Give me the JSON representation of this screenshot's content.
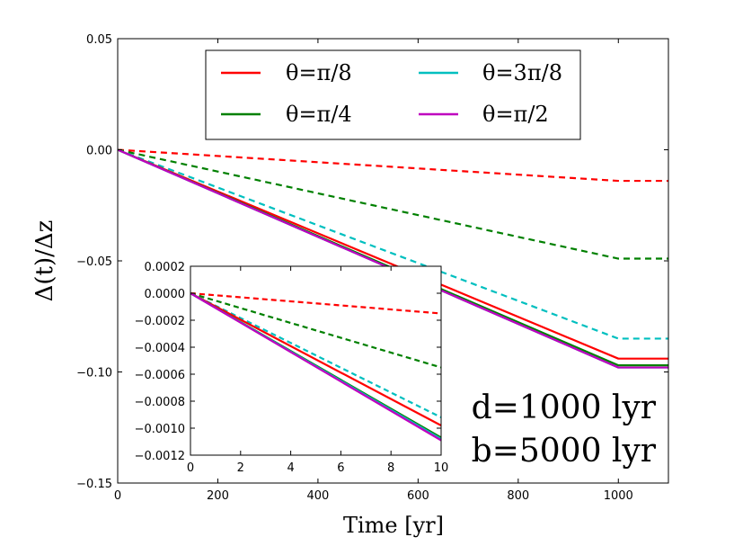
{
  "chart_data": [
    {
      "type": "line",
      "role": "main",
      "xlabel": "Time [yr]",
      "ylabel": "Δ(t)/Δz",
      "xlim": [
        0,
        1100
      ],
      "ylim": [
        -0.15,
        0.05
      ],
      "xticks": [
        0,
        200,
        400,
        600,
        800,
        1000
      ],
      "yticks": [
        0.05,
        0.0,
        -0.05,
        -0.1,
        -0.15
      ],
      "xtick_labels": [
        "0",
        "200",
        "400",
        "600",
        "800",
        "1000"
      ],
      "ytick_labels": [
        "0.05",
        "0.00",
        "−0.05",
        "−0.10",
        "−0.15"
      ],
      "grid": false,
      "legend_position": "top-center",
      "legend": [
        {
          "label": "θ=π/8",
          "color": "#ff0000"
        },
        {
          "label": "θ=3π/8",
          "color": "#00bfbf"
        },
        {
          "label": "θ=π/4",
          "color": "#008000"
        },
        {
          "label": "θ=π/2",
          "color": "#bf00bf"
        }
      ],
      "annotations": [
        "d=1000 lyr",
        "b=5000 lyr"
      ],
      "series": [
        {
          "name": "θ=π/8 solid",
          "color": "#ff0000",
          "dash": false,
          "x": [
            0,
            1000,
            1100
          ],
          "y": [
            0,
            -0.094,
            -0.094
          ]
        },
        {
          "name": "θ=π/4 solid",
          "color": "#008000",
          "dash": false,
          "x": [
            0,
            1000,
            1100
          ],
          "y": [
            0,
            -0.097,
            -0.097
          ]
        },
        {
          "name": "θ=3π/8 solid",
          "color": "#00bfbf",
          "dash": false,
          "x": [
            0,
            1000,
            1100
          ],
          "y": [
            0,
            -0.098,
            -0.098
          ]
        },
        {
          "name": "θ=π/2 solid",
          "color": "#bf00bf",
          "dash": false,
          "x": [
            0,
            1000,
            1100
          ],
          "y": [
            0,
            -0.098,
            -0.098
          ]
        },
        {
          "name": "θ=π/8 dashed",
          "color": "#ff0000",
          "dash": true,
          "x": [
            0,
            1000,
            1100
          ],
          "y": [
            0,
            -0.014,
            -0.014
          ]
        },
        {
          "name": "θ=π/4 dashed",
          "color": "#008000",
          "dash": true,
          "x": [
            0,
            1000,
            1100
          ],
          "y": [
            0,
            -0.049,
            -0.049
          ]
        },
        {
          "name": "θ=3π/8 dashed",
          "color": "#00bfbf",
          "dash": true,
          "x": [
            0,
            1000,
            1100
          ],
          "y": [
            0,
            -0.085,
            -0.085
          ]
        }
      ]
    },
    {
      "type": "line",
      "role": "inset",
      "xlim": [
        0,
        10
      ],
      "ylim": [
        -0.0012,
        0.0002
      ],
      "xticks": [
        0,
        2,
        4,
        6,
        8,
        10
      ],
      "yticks": [
        0.0002,
        0.0,
        -0.0002,
        -0.0004,
        -0.0006,
        -0.0008,
        -0.001,
        -0.0012
      ],
      "xtick_labels": [
        "0",
        "2",
        "4",
        "6",
        "8",
        "10"
      ],
      "ytick_labels": [
        "0.0002",
        "0.0000",
        "−0.0002",
        "−0.0004",
        "−0.0006",
        "−0.0008",
        "−0.0010",
        "−0.0012"
      ],
      "series": [
        {
          "name": "θ=π/8 solid",
          "color": "#ff0000",
          "dash": false,
          "x": [
            0,
            10
          ],
          "y": [
            0,
            -0.00098
          ]
        },
        {
          "name": "θ=π/4 solid",
          "color": "#008000",
          "dash": false,
          "x": [
            0,
            10
          ],
          "y": [
            0,
            -0.00107
          ]
        },
        {
          "name": "θ=3π/8 solid",
          "color": "#00bfbf",
          "dash": false,
          "x": [
            0,
            10
          ],
          "y": [
            0,
            -0.00108
          ]
        },
        {
          "name": "θ=π/2 solid",
          "color": "#bf00bf",
          "dash": false,
          "x": [
            0,
            10
          ],
          "y": [
            0,
            -0.00109
          ]
        },
        {
          "name": "θ=π/8 dashed",
          "color": "#ff0000",
          "dash": true,
          "x": [
            0,
            10
          ],
          "y": [
            0,
            -0.00015
          ]
        },
        {
          "name": "θ=π/4 dashed",
          "color": "#008000",
          "dash": true,
          "x": [
            0,
            10
          ],
          "y": [
            0,
            -0.00055
          ]
        },
        {
          "name": "θ=3π/8 dashed",
          "color": "#00bfbf",
          "dash": true,
          "x": [
            0,
            10
          ],
          "y": [
            0,
            -0.00092
          ]
        }
      ]
    }
  ]
}
